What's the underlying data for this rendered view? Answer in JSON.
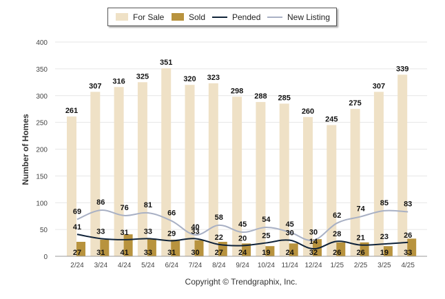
{
  "chart_data": {
    "type": "bar",
    "ylabel": "Number of Homes",
    "ylim": [
      0,
      400
    ],
    "yticks": [
      0,
      50,
      100,
      150,
      200,
      250,
      300,
      350,
      400
    ],
    "categories": [
      "2/24",
      "3/24",
      "4/24",
      "5/24",
      "6/24",
      "7/24",
      "8/24",
      "9/24",
      "10/24",
      "11/24",
      "12/24",
      "1/25",
      "2/25",
      "3/25",
      "4/25"
    ],
    "series": [
      {
        "name": "For Sale",
        "kind": "bar",
        "color": "#efe1c6",
        "values": [
          261,
          307,
          316,
          325,
          351,
          320,
          323,
          298,
          288,
          285,
          260,
          245,
          275,
          307,
          339
        ]
      },
      {
        "name": "Sold",
        "kind": "bar",
        "color": "#b8933e",
        "values": [
          27,
          31,
          41,
          33,
          31,
          30,
          27,
          24,
          19,
          24,
          32,
          26,
          26,
          19,
          33
        ]
      },
      {
        "name": "Pended",
        "kind": "line",
        "color": "#0f2238",
        "values": [
          41,
          33,
          31,
          33,
          29,
          33,
          22,
          20,
          25,
          30,
          14,
          28,
          21,
          23,
          26
        ]
      },
      {
        "name": "New Listing",
        "kind": "line",
        "color": "#a8b0c4",
        "values": [
          69,
          86,
          76,
          81,
          66,
          40,
          58,
          45,
          54,
          45,
          30,
          62,
          74,
          85,
          83
        ]
      }
    ],
    "grid": true,
    "legend_position": "top-center"
  },
  "footer": {
    "copyright": "Copyright © Trendgraphix, Inc."
  }
}
